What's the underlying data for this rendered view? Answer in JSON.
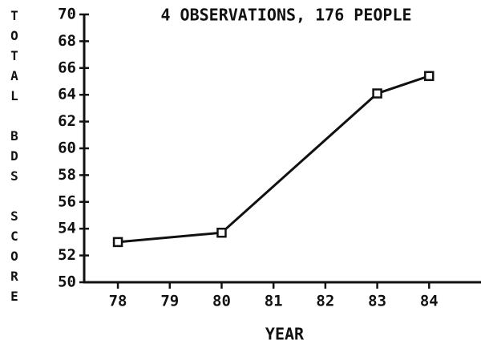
{
  "chart_data": {
    "type": "line",
    "title": "4 OBSERVATIONS, 176 PEOPLE",
    "x_label": "YEAR",
    "y_label": "TOTAL BDS SCORE",
    "x": [
      78,
      80,
      83,
      84
    ],
    "values": [
      53,
      53.7,
      64.1,
      65.4
    ],
    "color": "#111111",
    "xlim": [
      77.35,
      85
    ],
    "xticks": [
      78,
      79,
      80,
      81,
      82,
      83,
      84
    ],
    "ylim": [
      50,
      70
    ],
    "yticks": [
      50,
      52,
      54,
      56,
      58,
      60,
      62,
      64,
      66,
      68,
      70
    ],
    "grid": false
  }
}
